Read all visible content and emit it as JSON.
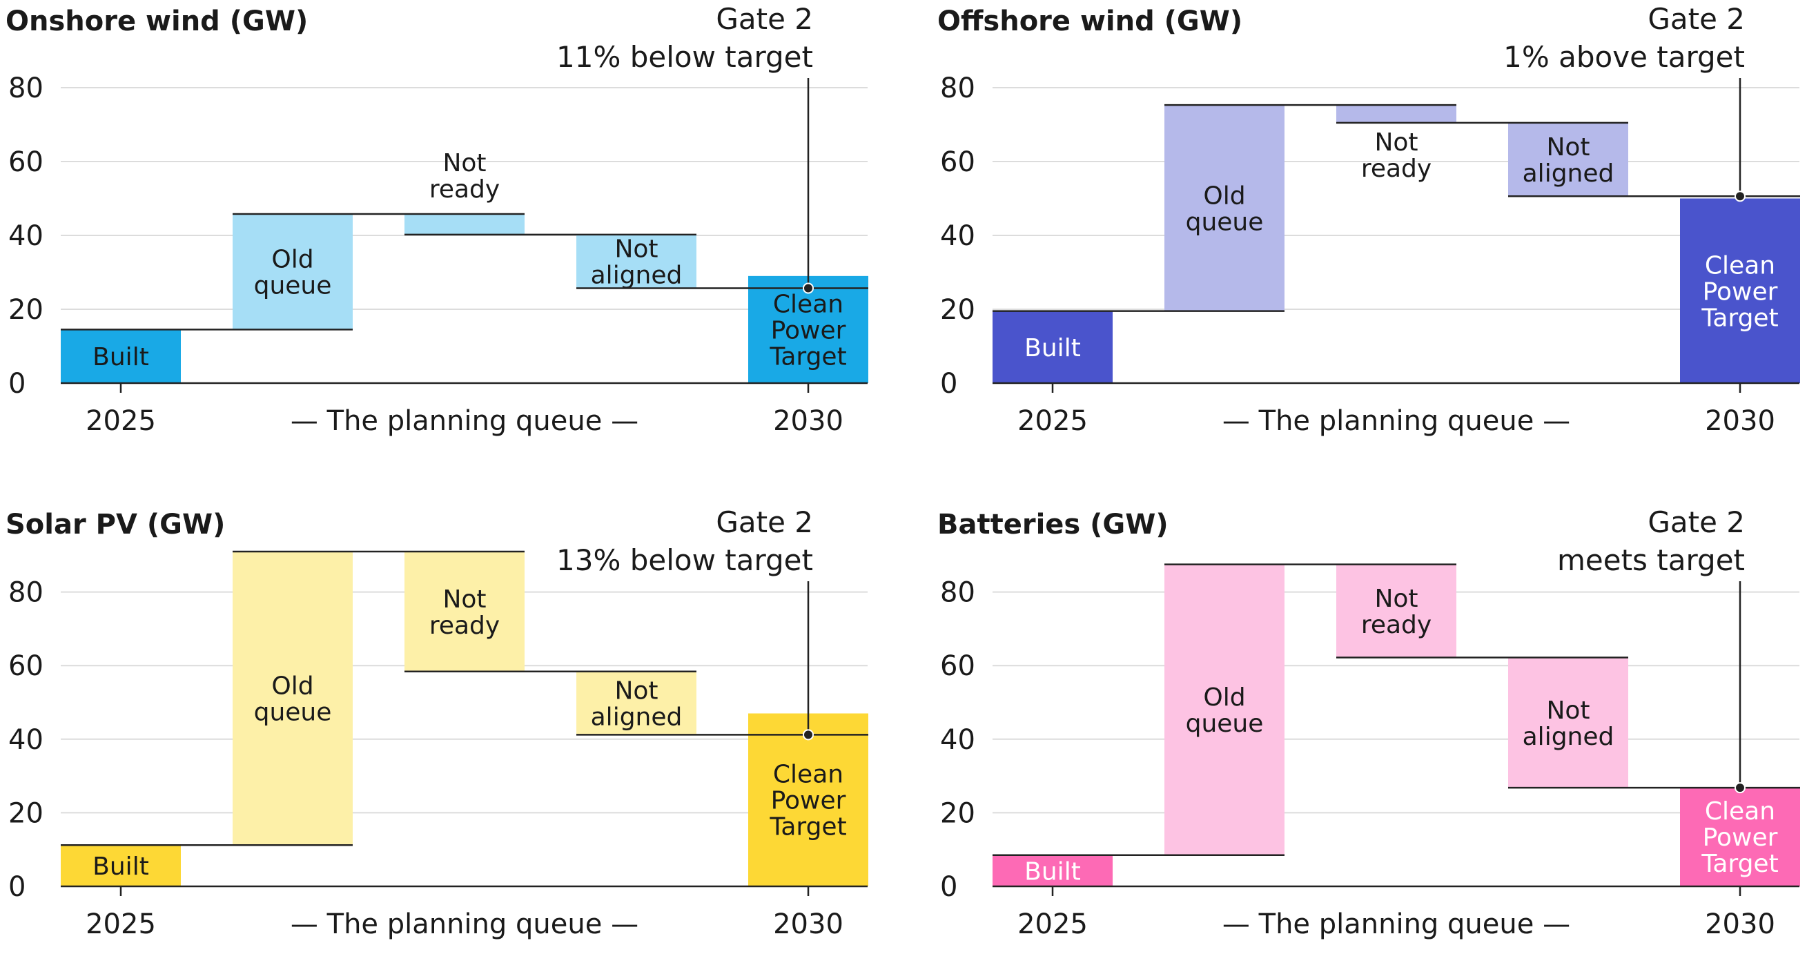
{
  "chart_data": [
    {
      "type": "waterfall",
      "title": "Onshore wind (GW)",
      "annotation": [
        "Gate 2",
        "11% below target"
      ],
      "colors": {
        "main": "#19a9e6",
        "light": "#a6def6",
        "label_on_main": "#1a1a1a"
      },
      "ylim": [
        0,
        80
      ],
      "yticks": [
        0,
        20,
        40,
        60,
        80
      ],
      "x_labels": [
        "2025",
        "— The planning queue —",
        "2030"
      ],
      "bars": [
        {
          "label": [
            "Built"
          ],
          "base": 0,
          "top": 14.5,
          "kind": "main"
        },
        {
          "label": [
            "Old",
            "queue"
          ],
          "base": 14.5,
          "top": 45.8,
          "kind": "light"
        },
        {
          "label": [
            "Not",
            "ready"
          ],
          "base": 40.2,
          "top": 45.8,
          "kind": "light",
          "label_position": "above"
        },
        {
          "label": [
            "Not",
            "aligned"
          ],
          "base": 25.7,
          "top": 40.2,
          "kind": "light"
        },
        {
          "label": [
            "Clean",
            "Power",
            "Target"
          ],
          "base": 0,
          "top": 29,
          "kind": "main"
        }
      ],
      "gate2_value": 25.7
    },
    {
      "type": "waterfall",
      "title": "Offshore wind (GW)",
      "annotation": [
        "Gate 2",
        "1% above target"
      ],
      "colors": {
        "main": "#4a54cc",
        "light": "#b5b9ea",
        "label_on_main": "#ffffff"
      },
      "ylim": [
        0,
        80
      ],
      "yticks": [
        0,
        20,
        40,
        60,
        80
      ],
      "x_labels": [
        "2025",
        "— The planning queue —",
        "2030"
      ],
      "bars": [
        {
          "label": [
            "Built"
          ],
          "base": 0,
          "top": 19.5,
          "kind": "main"
        },
        {
          "label": [
            "Old",
            "queue"
          ],
          "base": 19.5,
          "top": 75.3,
          "kind": "light"
        },
        {
          "label": [
            "Not",
            "ready"
          ],
          "base": 70.5,
          "top": 75.3,
          "kind": "light",
          "label_position": "below"
        },
        {
          "label": [
            "Not",
            "aligned"
          ],
          "base": 50.6,
          "top": 70.5,
          "kind": "light"
        },
        {
          "label": [
            "Clean",
            "Power",
            "Target"
          ],
          "base": 0,
          "top": 50,
          "kind": "main"
        }
      ],
      "gate2_value": 50.6
    },
    {
      "type": "waterfall",
      "title": "Solar PV (GW)",
      "annotation": [
        "Gate 2",
        "13% below target"
      ],
      "colors": {
        "main": "#fdd835",
        "light": "#fdf0a8",
        "label_on_main": "#1a1a1a"
      },
      "ylim": [
        0,
        90
      ],
      "yticks": [
        0,
        20,
        40,
        60,
        80
      ],
      "x_labels": [
        "2025",
        "— The planning queue —",
        "2030"
      ],
      "bars": [
        {
          "label": [
            "Built"
          ],
          "base": 0,
          "top": 11.2,
          "kind": "main"
        },
        {
          "label": [
            "Old",
            "queue"
          ],
          "base": 11.2,
          "top": 91,
          "kind": "light"
        },
        {
          "label": [
            "Not",
            "ready"
          ],
          "base": 58.4,
          "top": 91,
          "kind": "light"
        },
        {
          "label": [
            "Not",
            "aligned"
          ],
          "base": 41.2,
          "top": 58.4,
          "kind": "light"
        },
        {
          "label": [
            "Clean",
            "Power",
            "Target"
          ],
          "base": 0,
          "top": 47,
          "kind": "main"
        }
      ],
      "gate2_value": 41.2
    },
    {
      "type": "waterfall",
      "title": "Batteries (GW)",
      "annotation": [
        "Gate 2",
        "meets target"
      ],
      "colors": {
        "main": "#fd6ab5",
        "light": "#fdc3e3",
        "label_on_main": "#ffffff"
      },
      "ylim": [
        0,
        90
      ],
      "yticks": [
        0,
        20,
        40,
        60,
        80
      ],
      "x_labels": [
        "2025",
        "— The planning queue —",
        "2030"
      ],
      "bars": [
        {
          "label": [
            "Built"
          ],
          "base": 0,
          "top": 8.5,
          "kind": "main"
        },
        {
          "label": [
            "Old",
            "queue"
          ],
          "base": 8.5,
          "top": 87.5,
          "kind": "light"
        },
        {
          "label": [
            "Not",
            "ready"
          ],
          "base": 62.2,
          "top": 87.5,
          "kind": "light"
        },
        {
          "label": [
            "Not",
            "aligned"
          ],
          "base": 26.8,
          "top": 62.2,
          "kind": "light"
        },
        {
          "label": [
            "Clean",
            "Power",
            "Target"
          ],
          "base": 0,
          "top": 27,
          "kind": "main"
        }
      ],
      "gate2_value": 26.8
    }
  ]
}
